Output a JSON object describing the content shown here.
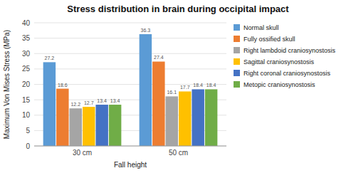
{
  "chart_data": {
    "type": "bar",
    "title": "Stress distribution in brain during occipital impact",
    "xlabel": "Fall height",
    "ylabel": "Maximum Von Mises Stress (MPa)",
    "categories": [
      "30 cm",
      "50 cm"
    ],
    "series": [
      {
        "name": "Normal skull",
        "color": "#5B9BD5",
        "values": [
          27.2,
          36.3
        ]
      },
      {
        "name": "Fully ossified skull",
        "color": "#ED7D31",
        "values": [
          18.6,
          27.4
        ]
      },
      {
        "name": "Right lambdoid craniosynostosis",
        "color": "#A5A5A5",
        "values": [
          12.2,
          16.1
        ]
      },
      {
        "name": "Sagittal craniosynostosis",
        "color": "#FFC000",
        "values": [
          12.7,
          17.7
        ]
      },
      {
        "name": "Right coronal craniosynostosis",
        "color": "#4472C4",
        "values": [
          13.4,
          18.4
        ]
      },
      {
        "name": "Metopic craniosynostosis",
        "color": "#70AD47",
        "values": [
          13.4,
          18.4
        ]
      }
    ],
    "ylim": [
      0,
      40
    ],
    "yticks": [
      0,
      5,
      10,
      15,
      20,
      25,
      30,
      35,
      40
    ],
    "grid": true,
    "legend": "right",
    "data_labels": true
  }
}
